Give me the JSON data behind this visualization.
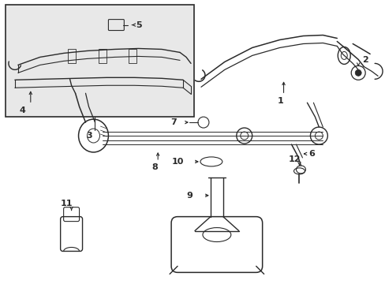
{
  "bg_color": "#ffffff",
  "line_color": "#2a2a2a",
  "inset_bg": "#e8e8e8",
  "fig_width": 4.89,
  "fig_height": 3.6,
  "dpi": 100
}
